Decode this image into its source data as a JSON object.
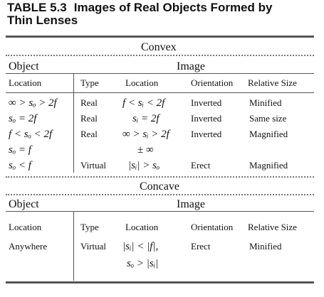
{
  "table": {
    "number": "TABLE 5.3",
    "title_line1": "Images of Real Objects Formed by",
    "title_line2": "Thin Lenses"
  },
  "convex": {
    "section_label": "Convex",
    "object_header": "Object",
    "image_header": "Image",
    "columns": {
      "location": "Location",
      "type": "Type",
      "image_location": "Location",
      "orientation": "Orientation",
      "relative_size": "Relative Size"
    },
    "rows": [
      {
        "object_location": "∞ > sₒ > 2f",
        "type": "Real",
        "image_location": "f < sᵢ < 2f",
        "orientation": "Inverted",
        "relative_size": "Minified"
      },
      {
        "object_location": "sₒ = 2f",
        "type": "Real",
        "image_location": "sᵢ = 2f",
        "orientation": "Inverted",
        "relative_size": "Same size"
      },
      {
        "object_location": "f < sₒ < 2f",
        "type": "Real",
        "image_location": "∞ > sᵢ > 2f",
        "orientation": "Inverted",
        "relative_size": "Magnified"
      },
      {
        "object_location": "sₒ = f",
        "type": "",
        "image_location": "± ∞",
        "orientation": "",
        "relative_size": ""
      },
      {
        "object_location": "sₒ < f",
        "type": "Virtual",
        "image_location": "|sᵢ| > sₒ",
        "orientation": "Erect",
        "relative_size": "Magnified"
      }
    ]
  },
  "concave": {
    "section_label": "Concave",
    "object_header": "Object",
    "image_header": "Image",
    "columns": {
      "location": "Location",
      "type": "Type",
      "image_location": "Location",
      "orientation": "Orientation",
      "relative_size": "Relative Size"
    },
    "rows": [
      {
        "object_location": "Anywhere",
        "type": "Virtual",
        "image_location_line1": "|sᵢ| < |f|,",
        "image_location_line2": "sₒ > |sᵢ|",
        "orientation": "Erect",
        "relative_size": "Minified"
      }
    ]
  }
}
